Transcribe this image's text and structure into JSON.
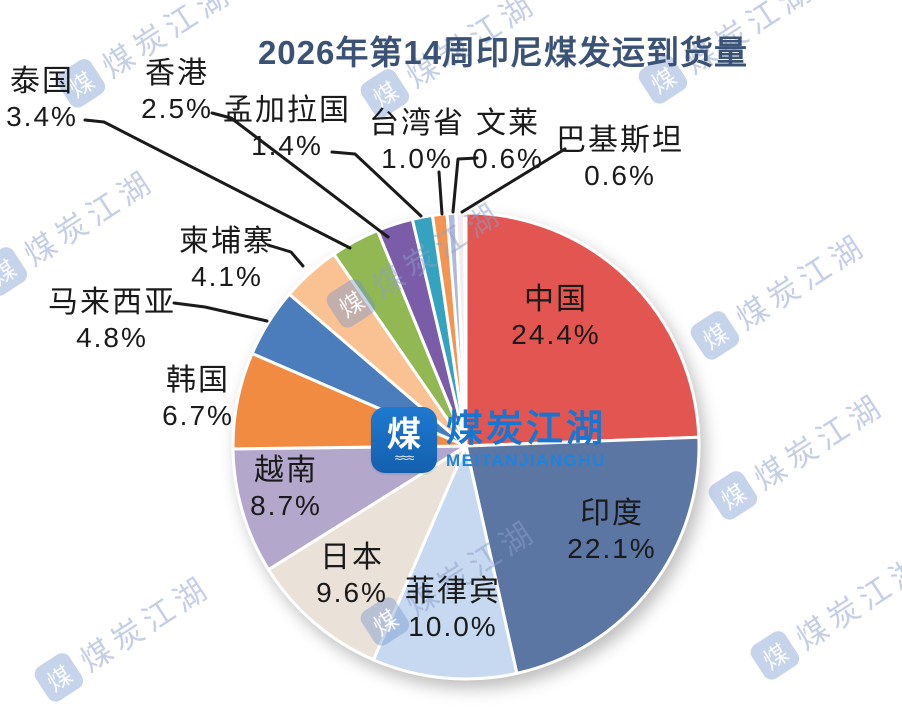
{
  "title": "2026年第14周印尼煤发运到货量",
  "brand": {
    "logo_glyph": "煤",
    "logo_wave": "≈≈≈",
    "name_cn": "煤炭江湖",
    "name_en": "MEITANJIANGHU"
  },
  "watermark": {
    "text": "煤炭江湖",
    "logo_glyph": "煤"
  },
  "colors": {
    "title": "#3B5277",
    "label": "#1A1A1A",
    "leader_line": "#1A1A1A",
    "brand_blue": "#1677D2",
    "watermark": "#AFBDDA",
    "background": "#FFFFFF"
  },
  "chart_data": {
    "type": "pie",
    "title": "2026年第14周印尼煤发运到货量",
    "unit": "%",
    "start_angle": "12-o'clock",
    "direction": "clockwise",
    "legend": "none",
    "series": [
      {
        "name": "中国",
        "value": 24.4,
        "pct_label": "24.4%",
        "color": "#E35551"
      },
      {
        "name": "印度",
        "value": 22.1,
        "pct_label": "22.1%",
        "color": "#5C76A4"
      },
      {
        "name": "菲律宾",
        "value": 10.0,
        "pct_label": "10.0%",
        "color": "#C6D9F0"
      },
      {
        "name": "日本",
        "value": 9.6,
        "pct_label": "9.6%",
        "color": "#EAE2D9"
      },
      {
        "name": "越南",
        "value": 8.7,
        "pct_label": "8.7%",
        "color": "#B4A7CC"
      },
      {
        "name": "韩国",
        "value": 6.7,
        "pct_label": "6.7%",
        "color": "#F28B42"
      },
      {
        "name": "马来西亚",
        "value": 4.8,
        "pct_label": "4.8%",
        "color": "#4B7DBD"
      },
      {
        "name": "柬埔寨",
        "value": 4.1,
        "pct_label": "4.1%",
        "color": "#FAC293"
      },
      {
        "name": "泰国",
        "value": 3.4,
        "pct_label": "3.4%",
        "color": "#92B854"
      },
      {
        "name": "香港",
        "value": 2.5,
        "pct_label": "2.5%",
        "color": "#7A5CA8"
      },
      {
        "name": "孟加拉国",
        "value": 1.4,
        "pct_label": "1.4%",
        "color": "#35A3BF"
      },
      {
        "name": "台湾省",
        "value": 1.0,
        "pct_label": "1.0%",
        "color": "#F39552"
      },
      {
        "name": "文莱",
        "value": 0.6,
        "pct_label": "0.6%",
        "color": "#AEBADC"
      },
      {
        "name": "巴基斯坦",
        "value": 0.6,
        "pct_label": "0.6%",
        "color": "#F2ECEE"
      }
    ]
  }
}
